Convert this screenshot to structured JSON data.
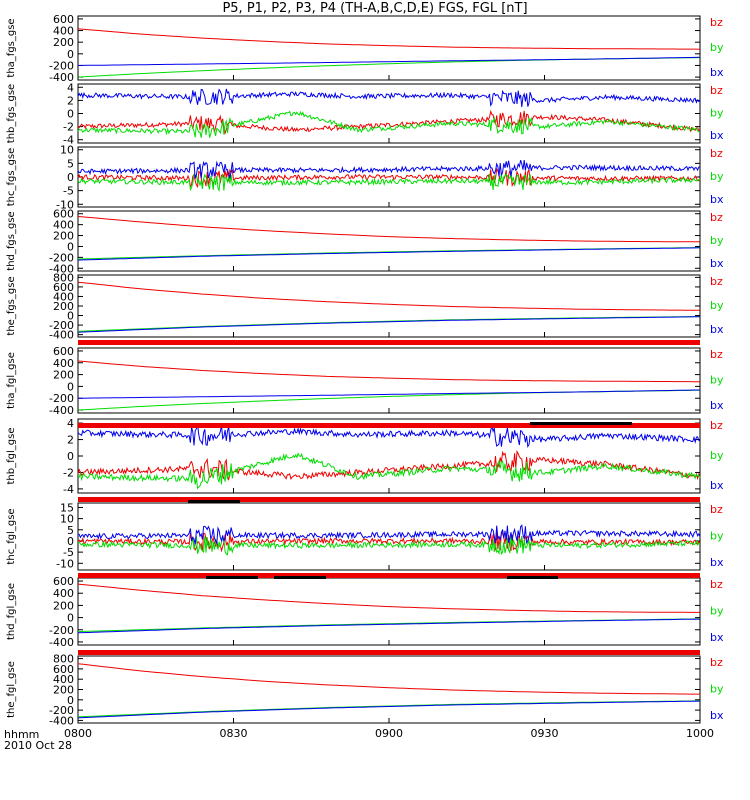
{
  "chart_data": {
    "title": "P5, P1, P2, P3, P4 (TH-A,B,C,D,E) FGS, FGL [nT]",
    "type": "line",
    "x_ticks": [
      "0800",
      "0830",
      "0900",
      "0930",
      "1000"
    ],
    "x_label_top": "hhmm",
    "x_label_bottom": "2010 Oct 28",
    "x_range": [
      "0800",
      "1000"
    ],
    "legend": [
      "bz",
      "by",
      "bx"
    ],
    "colors": {
      "bx": "#0000ee",
      "by": "#00dd00",
      "bz": "#ee0000"
    },
    "panels": [
      {
        "ylabel": "tha_fgs_gse",
        "yticks": [
          "600",
          "400",
          "200",
          "0",
          "-200",
          "-400"
        ],
        "ylim": [
          -450,
          650
        ],
        "series": {
          "bz": [
            [
              0,
              430
            ],
            [
              10,
              340
            ],
            [
              20,
              270
            ],
            [
              30,
              215
            ],
            [
              40,
              170
            ],
            [
              50,
              140
            ],
            [
              60,
              115
            ],
            [
              70,
              100
            ],
            [
              80,
              90
            ],
            [
              90,
              85
            ],
            [
              100,
              80
            ]
          ],
          "by": [
            [
              0,
              -400
            ],
            [
              10,
              -340
            ],
            [
              20,
              -290
            ],
            [
              30,
              -245
            ],
            [
              40,
              -205
            ],
            [
              50,
              -170
            ],
            [
              60,
              -140
            ],
            [
              70,
              -115
            ],
            [
              80,
              -95
            ],
            [
              90,
              -80
            ],
            [
              100,
              -65
            ]
          ],
          "bx": [
            [
              0,
              -200
            ],
            [
              20,
              -175
            ],
            [
              40,
              -150
            ],
            [
              60,
              -120
            ],
            [
              80,
              -95
            ],
            [
              100,
              -60
            ]
          ]
        }
      },
      {
        "ylabel": "thb_fgs_gse",
        "yticks": [
          "4",
          "2",
          "0",
          "-2",
          "-4"
        ],
        "ylim": [
          -4.5,
          4.5
        ],
        "noisy": true,
        "series": {
          "bz": [
            [
              0,
              -2.0
            ],
            [
              20,
              -1.5
            ],
            [
              35,
              -2.5
            ],
            [
              45,
              -2.0
            ],
            [
              60,
              -1.2
            ],
            [
              75,
              -0.5
            ],
            [
              85,
              -1.0
            ],
            [
              100,
              -2.5
            ]
          ],
          "by": [
            [
              0,
              -2.5
            ],
            [
              20,
              -2.8
            ],
            [
              35,
              0.2
            ],
            [
              45,
              -2.5
            ],
            [
              60,
              -1.5
            ],
            [
              75,
              -2.0
            ],
            [
              85,
              -1.2
            ],
            [
              100,
              -2.5
            ]
          ],
          "bx": [
            [
              0,
              2.8
            ],
            [
              20,
              2.5
            ],
            [
              35,
              3.0
            ],
            [
              45,
              2.6
            ],
            [
              60,
              2.8
            ],
            [
              75,
              2.0
            ],
            [
              85,
              2.5
            ],
            [
              100,
              2.0
            ]
          ]
        }
      },
      {
        "ylabel": "thc_fgs_gse",
        "yticks": [
          "10",
          "5",
          "0",
          "-5",
          "-10"
        ],
        "ylim": [
          -11,
          11
        ],
        "noisy": true,
        "series": {
          "bz": [
            [
              0,
              0
            ],
            [
              20,
              -0.5
            ],
            [
              40,
              0
            ],
            [
              60,
              0
            ],
            [
              80,
              -0.5
            ],
            [
              100,
              -0.5
            ]
          ],
          "by": [
            [
              0,
              -1.5
            ],
            [
              20,
              -2
            ],
            [
              40,
              -2
            ],
            [
              60,
              -1.5
            ],
            [
              80,
              -2
            ],
            [
              100,
              -1
            ]
          ],
          "bx": [
            [
              0,
              2
            ],
            [
              20,
              2.5
            ],
            [
              40,
              2.5
            ],
            [
              60,
              3
            ],
            [
              80,
              3.5
            ],
            [
              100,
              3
            ]
          ]
        }
      },
      {
        "ylabel": "thd_fgs_gse",
        "yticks": [
          "600",
          "400",
          "200",
          "0",
          "-200",
          "-400"
        ],
        "ylim": [
          -450,
          650
        ],
        "series": {
          "bz": [
            [
              0,
              550
            ],
            [
              10,
              450
            ],
            [
              20,
              360
            ],
            [
              30,
              290
            ],
            [
              40,
              230
            ],
            [
              50,
              180
            ],
            [
              60,
              145
            ],
            [
              70,
              120
            ],
            [
              80,
              100
            ],
            [
              90,
              90
            ],
            [
              100,
              85
            ]
          ],
          "by": [
            [
              0,
              -230
            ],
            [
              20,
              -170
            ],
            [
              40,
              -120
            ],
            [
              60,
              -80
            ],
            [
              80,
              -50
            ],
            [
              100,
              -20
            ]
          ],
          "bx": [
            [
              0,
              -250
            ],
            [
              20,
              -180
            ],
            [
              40,
              -130
            ],
            [
              60,
              -90
            ],
            [
              80,
              -55
            ],
            [
              100,
              -25
            ]
          ]
        }
      },
      {
        "ylabel": "the_fgs_gse",
        "yticks": [
          "800",
          "600",
          "400",
          "200",
          "0",
          "-200",
          "-400"
        ],
        "ylim": [
          -450,
          850
        ],
        "series": {
          "bz": [
            [
              0,
              700
            ],
            [
              10,
              560
            ],
            [
              20,
              450
            ],
            [
              30,
              360
            ],
            [
              40,
              290
            ],
            [
              50,
              235
            ],
            [
              60,
              190
            ],
            [
              70,
              160
            ],
            [
              80,
              135
            ],
            [
              90,
              120
            ],
            [
              100,
              110
            ]
          ],
          "by": [
            [
              0,
              -330
            ],
            [
              20,
              -230
            ],
            [
              40,
              -150
            ],
            [
              60,
              -90
            ],
            [
              80,
              -50
            ],
            [
              100,
              -20
            ]
          ],
          "bx": [
            [
              0,
              -350
            ],
            [
              20,
              -240
            ],
            [
              40,
              -160
            ],
            [
              60,
              -100
            ],
            [
              80,
              -60
            ],
            [
              100,
              -25
            ]
          ]
        }
      },
      {
        "ylabel": "tha_fgl_gse",
        "yticks": [
          "600",
          "400",
          "200",
          "0",
          "-200",
          "-400"
        ],
        "ylim": [
          -450,
          650
        ],
        "series": {
          "bz": [
            [
              0,
              430
            ],
            [
              10,
              340
            ],
            [
              20,
              270
            ],
            [
              30,
              215
            ],
            [
              40,
              170
            ],
            [
              50,
              140
            ],
            [
              60,
              115
            ],
            [
              70,
              100
            ],
            [
              80,
              90
            ],
            [
              90,
              85
            ],
            [
              100,
              80
            ]
          ],
          "by": [
            [
              0,
              -400
            ],
            [
              10,
              -340
            ],
            [
              20,
              -290
            ],
            [
              30,
              -245
            ],
            [
              40,
              -205
            ],
            [
              50,
              -170
            ],
            [
              60,
              -140
            ],
            [
              70,
              -115
            ],
            [
              80,
              -95
            ],
            [
              90,
              -80
            ],
            [
              100,
              -65
            ]
          ],
          "bx": [
            [
              0,
              -200
            ],
            [
              20,
              -175
            ],
            [
              40,
              -150
            ],
            [
              60,
              -120
            ],
            [
              80,
              -95
            ],
            [
              100,
              -60
            ]
          ]
        }
      },
      {
        "ylabel": "thb_fgl_gse",
        "yticks": [
          "4",
          "2",
          "0",
          "-2",
          "-4"
        ],
        "ylim": [
          -4.5,
          4.5
        ],
        "noisy": true,
        "series": {
          "bz": [
            [
              0,
              -2.0
            ],
            [
              20,
              -1.5
            ],
            [
              35,
              -2.5
            ],
            [
              45,
              -2.0
            ],
            [
              60,
              -1.2
            ],
            [
              75,
              -0.5
            ],
            [
              85,
              -1.0
            ],
            [
              100,
              -2.5
            ]
          ],
          "by": [
            [
              0,
              -2.5
            ],
            [
              20,
              -2.8
            ],
            [
              35,
              0.2
            ],
            [
              45,
              -2.5
            ],
            [
              60,
              -1.5
            ],
            [
              75,
              -2.0
            ],
            [
              85,
              -1.2
            ],
            [
              100,
              -2.5
            ]
          ],
          "bx": [
            [
              0,
              2.8
            ],
            [
              20,
              2.5
            ],
            [
              35,
              3.0
            ],
            [
              45,
              2.6
            ],
            [
              60,
              2.8
            ],
            [
              75,
              2.0
            ],
            [
              85,
              2.5
            ],
            [
              100,
              2.0
            ]
          ]
        }
      },
      {
        "ylabel": "thc_fgl_gse",
        "yticks": [
          "15",
          "10",
          "5",
          "0",
          "-5",
          "-10"
        ],
        "ylim": [
          -13,
          17
        ],
        "noisy": true,
        "series": {
          "bz": [
            [
              0,
              0
            ],
            [
              20,
              -0.5
            ],
            [
              40,
              0
            ],
            [
              60,
              0
            ],
            [
              80,
              -0.5
            ],
            [
              100,
              -0.5
            ]
          ],
          "by": [
            [
              0,
              -1.5
            ],
            [
              20,
              -2
            ],
            [
              40,
              -2
            ],
            [
              60,
              -1.5
            ],
            [
              80,
              -2
            ],
            [
              100,
              -1
            ]
          ],
          "bx": [
            [
              0,
              2
            ],
            [
              20,
              2.5
            ],
            [
              40,
              2.5
            ],
            [
              60,
              3
            ],
            [
              80,
              3.5
            ],
            [
              100,
              3
            ]
          ]
        }
      },
      {
        "ylabel": "thd_fgl_gse",
        "yticks": [
          "600",
          "400",
          "200",
          "0",
          "-200",
          "-400"
        ],
        "ylim": [
          -450,
          650
        ],
        "series": {
          "bz": [
            [
              0,
              550
            ],
            [
              10,
              450
            ],
            [
              20,
              360
            ],
            [
              30,
              290
            ],
            [
              40,
              230
            ],
            [
              50,
              180
            ],
            [
              60,
              145
            ],
            [
              70,
              120
            ],
            [
              80,
              100
            ],
            [
              90,
              90
            ],
            [
              100,
              85
            ]
          ],
          "by": [
            [
              0,
              -230
            ],
            [
              20,
              -170
            ],
            [
              40,
              -120
            ],
            [
              60,
              -80
            ],
            [
              80,
              -50
            ],
            [
              100,
              -20
            ]
          ],
          "bx": [
            [
              0,
              -250
            ],
            [
              20,
              -180
            ],
            [
              40,
              -130
            ],
            [
              60,
              -90
            ],
            [
              80,
              -55
            ],
            [
              100,
              -25
            ]
          ]
        }
      },
      {
        "ylabel": "the_fgl_gse",
        "yticks": [
          "800",
          "600",
          "400",
          "200",
          "0",
          "-200",
          "-400"
        ],
        "ylim": [
          -450,
          850
        ],
        "series": {
          "bz": [
            [
              0,
              700
            ],
            [
              10,
              560
            ],
            [
              20,
              450
            ],
            [
              30,
              360
            ],
            [
              40,
              290
            ],
            [
              50,
              235
            ],
            [
              60,
              190
            ],
            [
              70,
              160
            ],
            [
              80,
              135
            ],
            [
              90,
              120
            ],
            [
              100,
              110
            ]
          ],
          "by": [
            [
              0,
              -330
            ],
            [
              20,
              -230
            ],
            [
              40,
              -150
            ],
            [
              60,
              -90
            ],
            [
              80,
              -50
            ],
            [
              100,
              -20
            ]
          ],
          "bx": [
            [
              0,
              -350
            ],
            [
              20,
              -240
            ],
            [
              40,
              -160
            ],
            [
              60,
              -100
            ],
            [
              80,
              -60
            ],
            [
              100,
              -25
            ]
          ]
        }
      }
    ]
  }
}
